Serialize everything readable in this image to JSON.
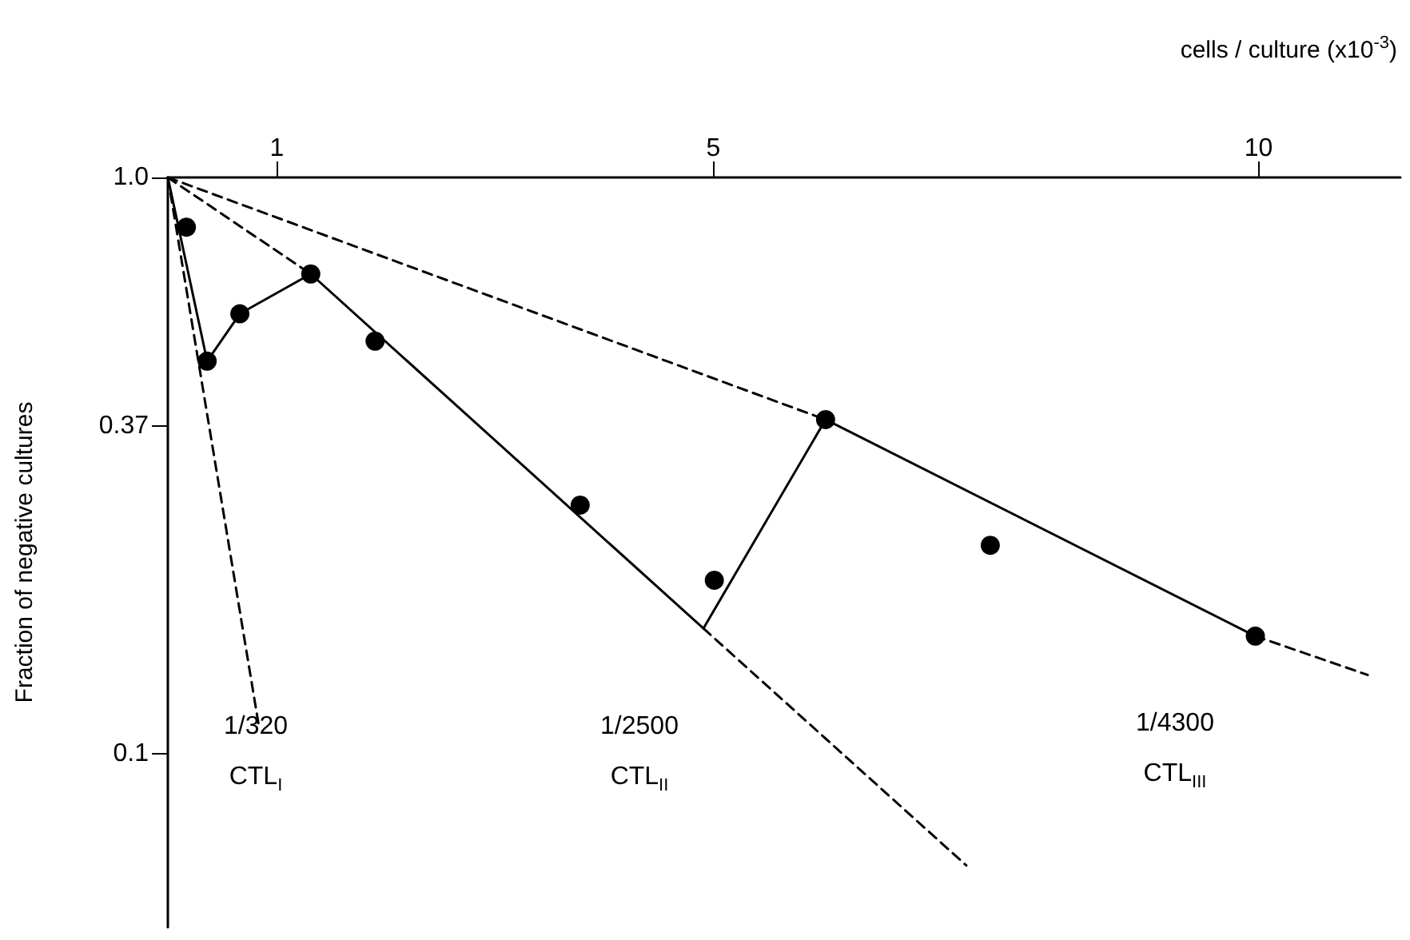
{
  "chart_data": {
    "type": "scatter",
    "xlabel": "cells / culture (x10$^{-3}$)",
    "ylabel": "Fraction of negative cultures",
    "xlim": [
      0,
      11.3
    ],
    "xticks": [
      1,
      5,
      10
    ],
    "ylim": [
      0.05,
      1.0
    ],
    "yticks": [
      {
        "value": 1.0,
        "label": "1.0"
      },
      0.37,
      0.1
    ],
    "log": "y",
    "grid": false,
    "marker": "circle",
    "series": [
      {
        "type": "line",
        "color": "#000000",
        "marker": "none",
        "line_style": "solid",
        "x": [
          0,
          0.36,
          0.66,
          1.31,
          4.91,
          6.03,
          9.97
        ],
        "values": [
          1.0,
          0.48,
          0.58,
          0.68,
          0.165,
          0.38,
          0.16
        ]
      },
      {
        "type": "line",
        "color": "#000000",
        "marker": "none",
        "line_style": "dashed",
        "x": [
          0,
          0.83
        ],
        "values": [
          1.0,
          0.113
        ]
      },
      {
        "type": "line",
        "color": "#000000",
        "marker": "none",
        "line_style": "dashed",
        "x": [
          0,
          1.31
        ],
        "values": [
          1.0,
          0.68
        ]
      },
      {
        "type": "line",
        "color": "#000000",
        "marker": "none",
        "line_style": "dashed",
        "x": [
          4.91,
          7.32
        ],
        "values": [
          0.165,
          0.064
        ]
      },
      {
        "type": "line",
        "color": "#000000",
        "marker": "none",
        "line_style": "dashed",
        "x": [
          0,
          6.03
        ],
        "values": [
          1.0,
          0.38
        ]
      },
      {
        "type": "line",
        "color": "#000000",
        "marker": "none",
        "line_style": "dashed",
        "x": [
          9.97,
          11.0
        ],
        "values": [
          0.16,
          0.137
        ]
      },
      {
        "color": "#000000",
        "x": [
          0.17,
          0.36,
          0.66,
          1.31,
          1.9,
          3.78,
          5.01,
          6.03,
          7.54,
          9.97
        ],
        "values": [
          0.82,
          0.48,
          0.58,
          0.68,
          0.52,
          0.27,
          0.2,
          0.38,
          0.23,
          0.16
        ]
      }
    ],
    "annotations": [
      "1/320",
      "CTL$_{I}$",
      "1/2500",
      "CTL$_{II}$",
      "1/4300",
      "CTL$_{III}$"
    ]
  }
}
